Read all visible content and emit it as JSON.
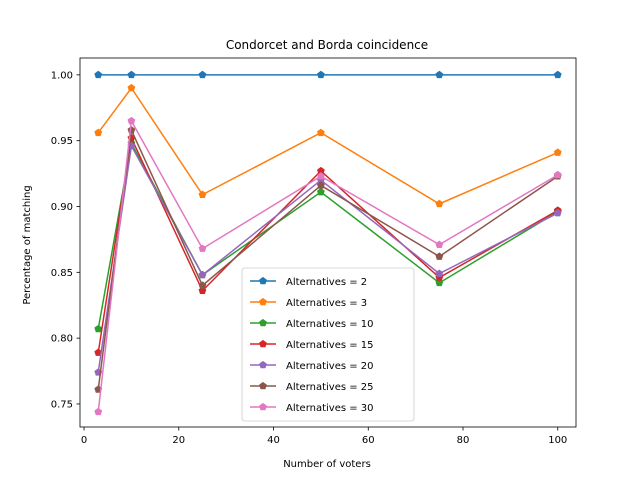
{
  "chart_data": {
    "type": "line",
    "title": "Condorcet and Borda coincidence",
    "xlabel": "Number of voters",
    "ylabel": "Percentage of matching",
    "x": [
      3,
      10,
      25,
      50,
      75,
      100
    ],
    "xlim": [
      -0.85,
      103.85
    ],
    "ylim": [
      0.7325,
      1.0128
    ],
    "xticks": [
      0,
      20,
      40,
      60,
      80,
      100
    ],
    "xtick_labels": [
      "0",
      "20",
      "40",
      "60",
      "80",
      "100"
    ],
    "yticks": [
      0.75,
      0.8,
      0.85,
      0.9,
      0.95,
      1.0
    ],
    "ytick_labels": [
      "0.75",
      "0.80",
      "0.85",
      "0.90",
      "0.95",
      "1.00"
    ],
    "grid": false,
    "legend_position": "lower-center",
    "marker": "pentagon",
    "series": [
      {
        "name": "Alternatives = 2",
        "color": "#1f77b4",
        "values": [
          1.0,
          1.0,
          1.0,
          1.0,
          1.0,
          1.0
        ]
      },
      {
        "name": "Alternatives = 3",
        "color": "#ff7f0e",
        "values": [
          0.956,
          0.99,
          0.909,
          0.956,
          0.902,
          0.941
        ]
      },
      {
        "name": "Alternatives = 10",
        "color": "#2ca02c",
        "values": [
          0.807,
          0.948,
          0.848,
          0.911,
          0.842,
          0.896
        ]
      },
      {
        "name": "Alternatives = 15",
        "color": "#d62728",
        "values": [
          0.789,
          0.952,
          0.836,
          0.927,
          0.846,
          0.897
        ]
      },
      {
        "name": "Alternatives = 20",
        "color": "#9467bd",
        "values": [
          0.774,
          0.946,
          0.848,
          0.92,
          0.849,
          0.895
        ]
      },
      {
        "name": "Alternatives = 25",
        "color": "#8c564b",
        "values": [
          0.761,
          0.958,
          0.84,
          0.916,
          0.862,
          0.923
        ]
      },
      {
        "name": "Alternatives = 30",
        "color": "#e377c2",
        "values": [
          0.744,
          0.965,
          0.868,
          0.923,
          0.871,
          0.924
        ]
      }
    ]
  }
}
